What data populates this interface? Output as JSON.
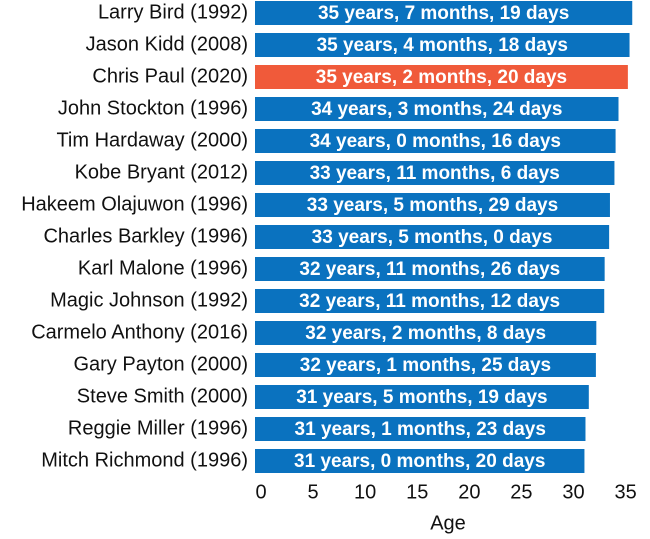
{
  "chart_data": {
    "type": "barh",
    "categories": [
      "Larry Bird (1992)",
      "Jason Kidd (2008)",
      "Chris Paul (2020)",
      "John Stockton (1996)",
      "Tim Hardaway (2000)",
      "Kobe Bryant (2012)",
      "Hakeem Olajuwon (1996)",
      "Charles Barkley (1996)",
      "Karl Malone (1996)",
      "Magic Johnson (1992)",
      "Carmelo Anthony (2016)",
      "Gary Payton (2000)",
      "Steve Smith (2000)",
      "Reggie Miller (1996)",
      "Mitch Richmond (1996)"
    ],
    "values": [
      35.64,
      35.38,
      35.22,
      34.32,
      34.04,
      33.93,
      33.5,
      33.42,
      32.99,
      32.95,
      32.19,
      32.15,
      31.47,
      31.15,
      31.05
    ],
    "value_labels": [
      "35 years, 7 months, 19 days",
      "35 years, 4 months, 18 days",
      "35 years, 2 months, 20 days",
      "34 years, 3 months, 24 days",
      "34 years, 0 months, 16 days",
      "33 years, 11 months, 6 days",
      "33 years, 5 months, 29 days",
      "33 years, 5 months, 0 days",
      "32 years, 11 months, 26 days",
      "32 years, 11 months, 12 days",
      "32 years, 2 months, 8 days",
      "32 years, 1 months, 25 days",
      "31 years, 5 months, 19 days",
      "31 years, 1 months, 23 days",
      "31 years, 0 months, 20 days"
    ],
    "colors": [
      "#0a72bf",
      "#0a72bf",
      "#f05a3a",
      "#0a72bf",
      "#0a72bf",
      "#0a72bf",
      "#0a72bf",
      "#0a72bf",
      "#0a72bf",
      "#0a72bf",
      "#0a72bf",
      "#0a72bf",
      "#0a72bf",
      "#0a72bf",
      "#0a72bf"
    ],
    "xlabel": "Age",
    "xlim": [
      0,
      36
    ],
    "xticks": [
      0,
      5,
      10,
      15,
      20,
      25,
      30,
      35
    ]
  }
}
